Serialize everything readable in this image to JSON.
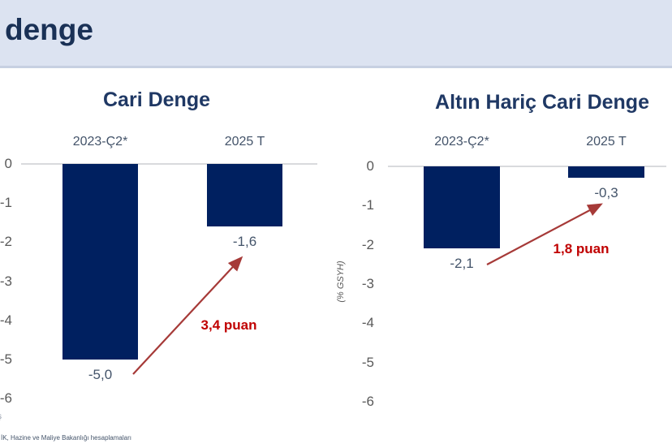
{
  "header": {
    "title": "denge"
  },
  "footer": {
    "fragment": "ş",
    "source": "İK, Hazine ve Maliye Bakanlığı hesaplamaları"
  },
  "colors": {
    "header_bg": "#dce3f1",
    "header_text": "#1a3156",
    "chart_title": "#1f3864",
    "bar": "#002060",
    "axis_text": "#595959",
    "label_text": "#44546a",
    "zero_line": "#d9dadd",
    "arrow": "#a63a38",
    "annotation": "#c00000"
  },
  "chart_data": [
    {
      "type": "bar",
      "title": "Cari Denge",
      "categories": [
        "2023-Ç2*",
        "2025 T"
      ],
      "values": [
        -5.0,
        -1.6
      ],
      "value_labels": [
        "-5,0",
        "-1,6"
      ],
      "annotation": "3,4 puan",
      "xlabel": "",
      "ylabel": "",
      "yticks": [
        0,
        -1,
        -2,
        -3,
        -4,
        -5,
        -6
      ],
      "ylim": [
        0,
        -6
      ],
      "grid": false,
      "legend": "none"
    },
    {
      "type": "bar",
      "title": "Altın Hariç Cari Denge",
      "categories": [
        "2023-Ç2*",
        "2025 T"
      ],
      "values": [
        -2.1,
        -0.3
      ],
      "value_labels": [
        "-2,1",
        "-0,3"
      ],
      "annotation": "1,8 puan",
      "xlabel": "",
      "ylabel": "(% GSYH)",
      "yticks": [
        0,
        -1,
        -2,
        -3,
        -4,
        -5,
        -6
      ],
      "ylim": [
        0,
        -6
      ],
      "grid": false,
      "legend": "none"
    }
  ]
}
